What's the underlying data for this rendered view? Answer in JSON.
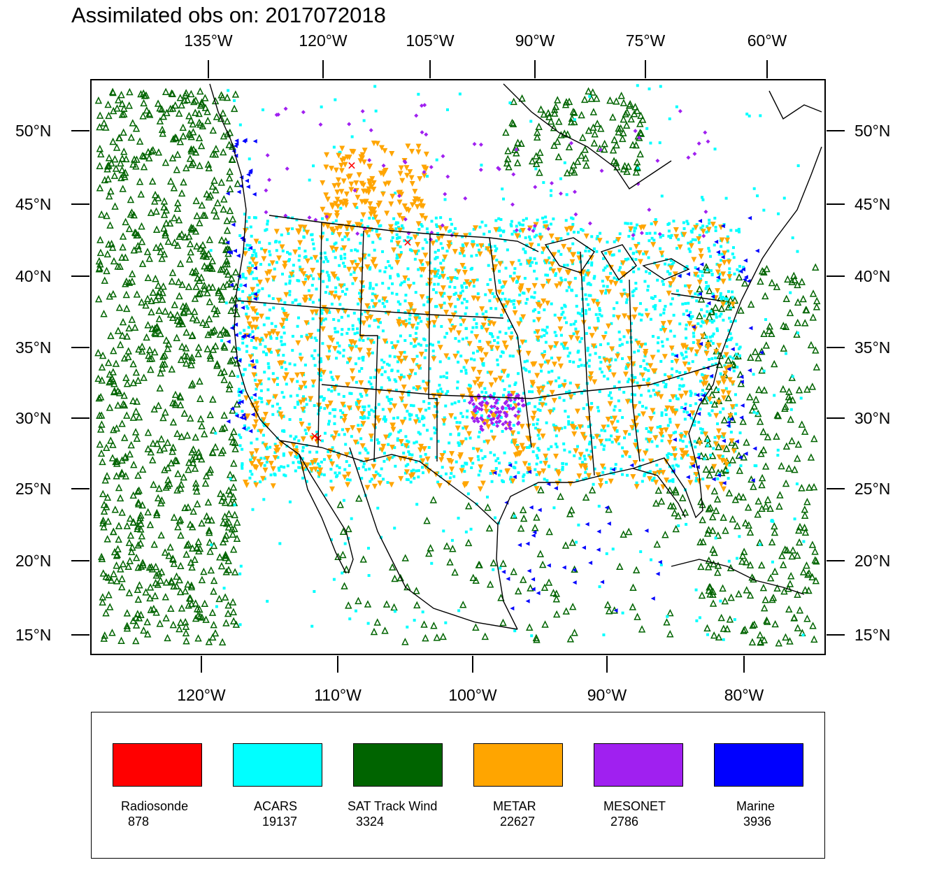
{
  "title": "Assimilated obs on: 2017072018",
  "map": {
    "top_lon_labels": [
      "135°W",
      "120°W",
      "105°W",
      "90°W",
      "75°W",
      "60°W"
    ],
    "bottom_lon_labels": [
      "120°W",
      "110°W",
      "100°W",
      "90°W",
      "80°W"
    ],
    "lat_labels": [
      "50°N",
      "45°N",
      "40°N",
      "35°N",
      "30°N",
      "25°N",
      "20°N",
      "15°N"
    ]
  },
  "legend": [
    {
      "name": "Radiosonde",
      "count": "878",
      "color": "#ff0000"
    },
    {
      "name": "ACARS",
      "count": "19137",
      "color": "#00ffff"
    },
    {
      "name": "SAT Track Wind",
      "count": "3324",
      "color": "#006400"
    },
    {
      "name": "METAR",
      "count": "22627",
      "color": "#ffa500"
    },
    {
      "name": "MESONET",
      "count": "2786",
      "color": "#a020f0"
    },
    {
      "name": "Marine",
      "count": "3936",
      "color": "#0000ff"
    }
  ]
}
